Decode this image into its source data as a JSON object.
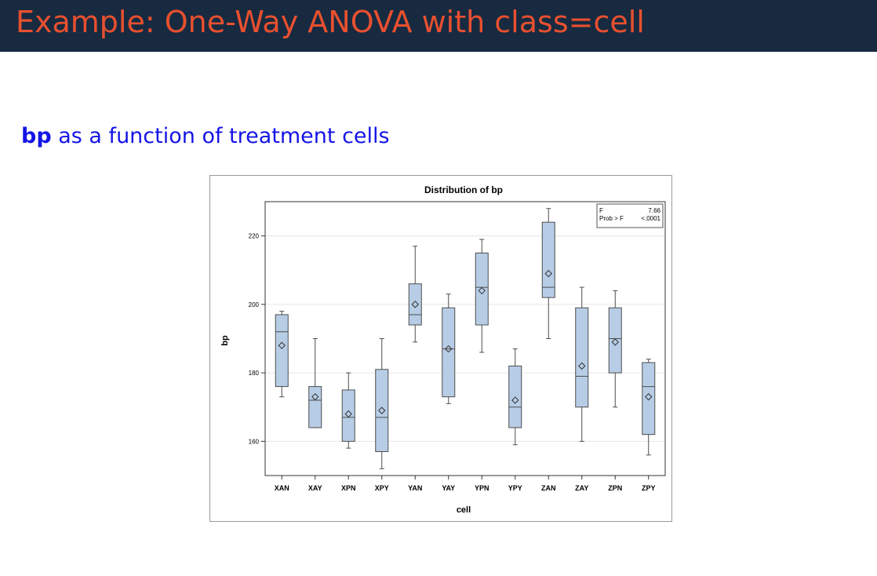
{
  "slide": {
    "title": "Example: One-Way ANOVA with class=cell",
    "subtitle_keyword": "bp",
    "subtitle_rest": " as a function of treatment cells"
  },
  "colors": {
    "title_bg": "#172a40",
    "title_text": "#e8502f",
    "subtitle_text": "#1414e6",
    "box_fill": "#b7cde6",
    "box_stroke": "#4d4d4d"
  },
  "chart_data": {
    "type": "box",
    "title": "Distribution of bp",
    "xlabel": "cell",
    "ylabel": "bp",
    "ylim": [
      150,
      230
    ],
    "yticks": [
      160,
      180,
      200,
      220
    ],
    "grid": true,
    "categories": [
      "XAN",
      "XAY",
      "XPN",
      "XPY",
      "YAN",
      "YAY",
      "YPN",
      "YPY",
      "ZAN",
      "ZAY",
      "ZPN",
      "ZPY"
    ],
    "boxes": [
      {
        "min": 173,
        "q1": 176,
        "median": 192,
        "q3": 197,
        "max": 198,
        "mean": 188
      },
      {
        "min": 164,
        "q1": 164,
        "median": 172,
        "q3": 176,
        "max": 190,
        "mean": 173
      },
      {
        "min": 158,
        "q1": 160,
        "median": 167,
        "q3": 175,
        "max": 180,
        "mean": 168
      },
      {
        "min": 152,
        "q1": 157,
        "median": 167,
        "q3": 181,
        "max": 190,
        "mean": 169
      },
      {
        "min": 189,
        "q1": 194,
        "median": 197,
        "q3": 206,
        "max": 217,
        "mean": 200
      },
      {
        "min": 171,
        "q1": 173,
        "median": 187,
        "q3": 199,
        "max": 203,
        "mean": 187
      },
      {
        "min": 186,
        "q1": 194,
        "median": 205,
        "q3": 215,
        "max": 219,
        "mean": 204
      },
      {
        "min": 159,
        "q1": 164,
        "median": 170,
        "q3": 182,
        "max": 187,
        "mean": 172
      },
      {
        "min": 190,
        "q1": 202,
        "median": 205,
        "q3": 224,
        "max": 228,
        "mean": 209
      },
      {
        "min": 160,
        "q1": 170,
        "median": 179,
        "q3": 199,
        "max": 205,
        "mean": 182
      },
      {
        "min": 170,
        "q1": 180,
        "median": 190,
        "q3": 199,
        "max": 204,
        "mean": 189
      },
      {
        "min": 156,
        "q1": 162,
        "median": 176,
        "q3": 183,
        "max": 184,
        "mean": 173
      }
    ],
    "stats_inset": {
      "rows": [
        {
          "label": "F",
          "value": "7.66"
        },
        {
          "label": "Prob > F",
          "value": "<.0001"
        }
      ],
      "position": "top-right"
    }
  }
}
